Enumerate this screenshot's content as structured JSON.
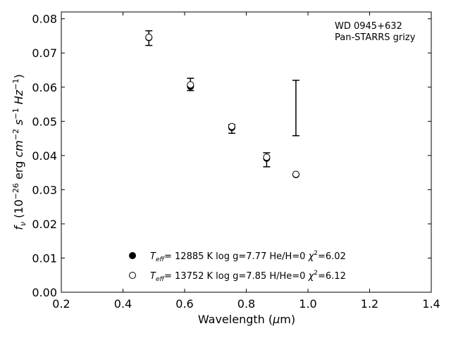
{
  "chart_data": {
    "type": "scatter",
    "annotation": [
      "WD 0945+632",
      "Pan-STARRS grizy"
    ],
    "xlabel": {
      "main": "Wavelength (",
      "sym": "μ",
      "rest": "m)"
    },
    "ylabel": {
      "f": "f",
      "nu": "ν",
      "a": " (10",
      "exp1": "−26",
      "b": " erg ",
      "cm": "cm",
      "exp2": "−2",
      "s": " s",
      "exp3": "−1",
      "hz": " Hz",
      "exp4": "−1",
      "end": ")"
    },
    "xlim": [
      0.2,
      1.4
    ],
    "ylim": [
      0.0,
      0.082
    ],
    "xticks": [
      "0.2",
      "0.4",
      "0.6",
      "0.8",
      "1.0",
      "1.2",
      "1.4"
    ],
    "yticks": [
      "0.00",
      "0.01",
      "0.02",
      "0.03",
      "0.04",
      "0.05",
      "0.06",
      "0.07",
      "0.08"
    ],
    "observed": [
      {
        "band": "g",
        "x": 0.484,
        "low": 0.0722,
        "high": 0.0765
      },
      {
        "band": "r",
        "x": 0.619,
        "low": 0.059,
        "high": 0.0626
      },
      {
        "band": "i",
        "x": 0.753,
        "low": 0.0465,
        "high": 0.049
      },
      {
        "band": "z",
        "x": 0.866,
        "low": 0.0367,
        "high": 0.0408
      },
      {
        "band": "y",
        "x": 0.961,
        "low": 0.0458,
        "high": 0.062
      }
    ],
    "series": [
      {
        "legend": {
          "T": "T",
          "sub": "eff",
          "text": "= 12885 K  log g=7.77  He/H=0  ",
          "chi": "χ",
          "sup": "2",
          "end": "=6.02"
        },
        "marker": "filled",
        "x": [
          0.484,
          0.619,
          0.753,
          0.866,
          0.961
        ],
        "y": [
          0.0745,
          0.0602,
          0.0482,
          0.0392,
          0.0344
        ]
      },
      {
        "legend": {
          "T": "T",
          "sub": "eff",
          "text": "= 13752 K  log g=7.85  H/He=0  ",
          "chi": "χ",
          "sup": "2",
          "end": "=6.12"
        },
        "marker": "open",
        "x": [
          0.484,
          0.619,
          0.753,
          0.866,
          0.961
        ],
        "y": [
          0.0746,
          0.0607,
          0.0485,
          0.0395,
          0.0345
        ]
      }
    ],
    "legend_position": "lower-center",
    "grid": false
  }
}
